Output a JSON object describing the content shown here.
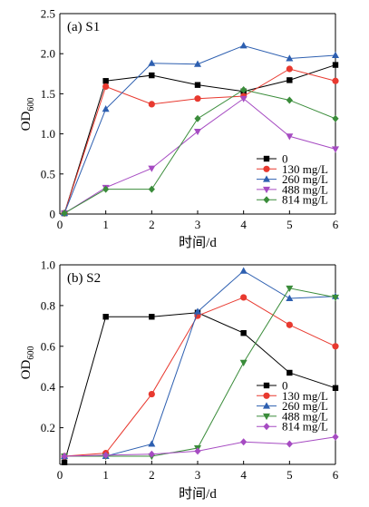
{
  "chart_data": [
    {
      "type": "line",
      "title": "(a)  S1",
      "xlabel": "时间/d",
      "ylabel": "OD",
      "ylabel_sub": "600",
      "xlim": [
        0,
        6
      ],
      "ylim": [
        0,
        2.5
      ],
      "xticks": [
        "0",
        "1",
        "2",
        "3",
        "4",
        "5",
        "6"
      ],
      "yticks": [
        "0",
        "0.5",
        "1.0",
        "1.5",
        "2.0",
        "2.5"
      ],
      "legend_position": "bottom-right",
      "grid": false,
      "x": [
        0.1,
        1,
        2,
        3,
        4,
        5,
        6
      ],
      "series": [
        {
          "name": "0",
          "color": "#000000",
          "marker": "square",
          "values": [
            0.01,
            1.66,
            1.73,
            1.61,
            1.53,
            1.67,
            1.86
          ]
        },
        {
          "name": "130 mg/L",
          "color": "#e8392f",
          "marker": "circle",
          "values": [
            0.01,
            1.59,
            1.37,
            1.44,
            1.47,
            1.81,
            1.66
          ]
        },
        {
          "name": "260 mg/L",
          "color": "#2d5fb0",
          "marker": "triangle-up",
          "values": [
            0.01,
            1.31,
            1.88,
            1.87,
            2.1,
            1.94,
            1.98
          ]
        },
        {
          "name": "488 mg/L",
          "color": "#a64bc2",
          "marker": "triangle-down",
          "values": [
            0.01,
            0.33,
            0.57,
            1.03,
            1.44,
            0.97,
            0.81
          ]
        },
        {
          "name": "814 mg/L",
          "color": "#3a8c3a",
          "marker": "diamond",
          "values": [
            0.01,
            0.31,
            0.31,
            1.19,
            1.55,
            1.42,
            1.19
          ]
        }
      ]
    },
    {
      "type": "line",
      "title": "(b)  S2",
      "xlabel": "时间/d",
      "ylabel": "OD",
      "ylabel_sub": "600",
      "xlim": [
        0,
        6
      ],
      "ylim": [
        0.02,
        1.0
      ],
      "xticks": [
        "0",
        "1",
        "2",
        "3",
        "4",
        "5",
        "6"
      ],
      "yticks": [
        "0.2",
        "0.4",
        "0.6",
        "0.8",
        "1.0"
      ],
      "legend_position": "bottom-right",
      "grid": false,
      "x": [
        0.1,
        1,
        2,
        3,
        4,
        5,
        6
      ],
      "series": [
        {
          "name": "0",
          "color": "#000000",
          "marker": "square",
          "values": [
            0.03,
            0.745,
            0.745,
            0.765,
            0.665,
            0.47,
            0.395
          ]
        },
        {
          "name": "130 mg/L",
          "color": "#e8392f",
          "marker": "circle",
          "values": [
            0.06,
            0.075,
            0.365,
            0.75,
            0.84,
            0.705,
            0.6
          ]
        },
        {
          "name": "260 mg/L",
          "color": "#2d5fb0",
          "marker": "triangle-up",
          "values": [
            0.06,
            0.06,
            0.12,
            0.77,
            0.97,
            0.835,
            0.845
          ]
        },
        {
          "name": "488 mg/L",
          "color": "#3a8c3a",
          "marker": "triangle-down",
          "values": [
            0.06,
            0.06,
            0.06,
            0.1,
            0.52,
            0.885,
            0.84
          ]
        },
        {
          "name": "814 mg/L",
          "color": "#a64bc2",
          "marker": "diamond",
          "values": [
            0.06,
            0.065,
            0.07,
            0.085,
            0.13,
            0.12,
            0.155
          ]
        }
      ]
    }
  ]
}
